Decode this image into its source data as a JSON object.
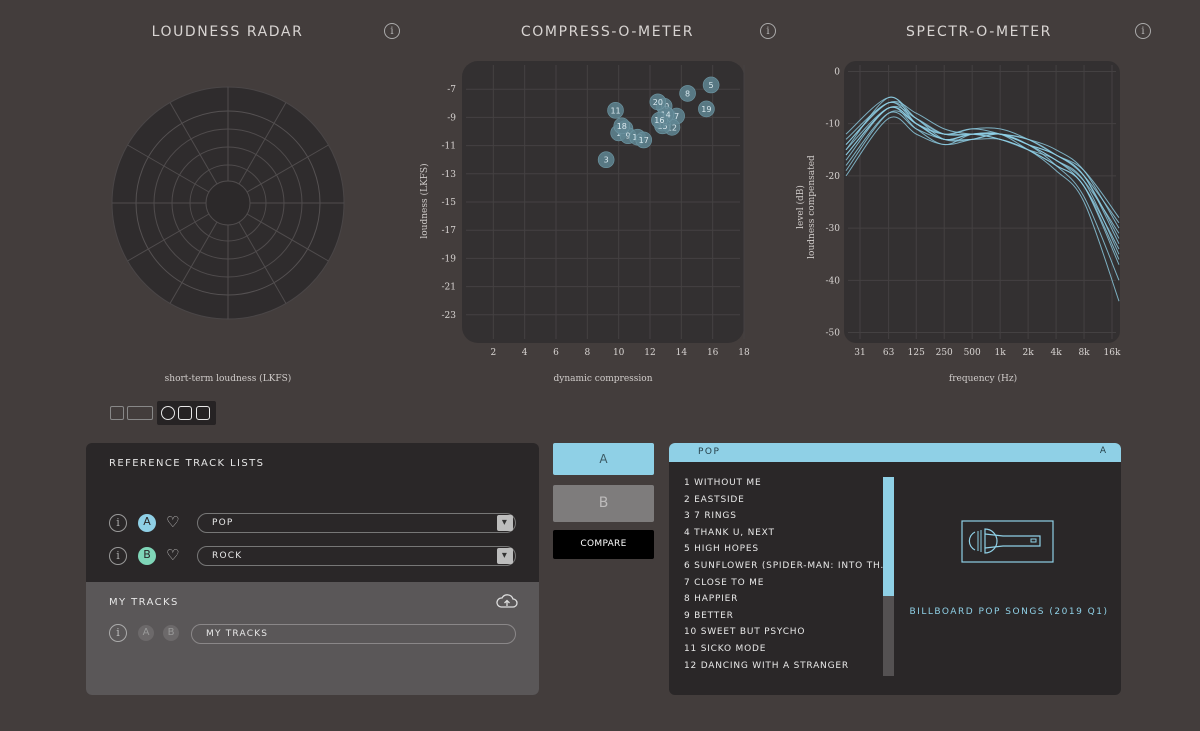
{
  "loudness_radar": {
    "title": "LOUDNESS RADAR",
    "axis_label": "short-term loudness (LKFS)"
  },
  "compress_o_meter": {
    "title": "COMPRESS-O-METER",
    "xlabel": "dynamic compression",
    "ylabel": "loudness (LKFS)"
  },
  "spectr_o_meter": {
    "title": "SPECTR-O-METER",
    "xlabel": "frequency (Hz)",
    "ylabel_line1": "level (dB)",
    "ylabel_line2": "loudness compensated"
  },
  "info_glyph": "i",
  "chart_data": [
    {
      "type": "scatter",
      "title": "COMPRESS-O-METER",
      "xlabel": "dynamic compression",
      "ylabel": "loudness (LKFS)",
      "xlim": [
        0,
        18
      ],
      "ylim": [
        -25,
        -5
      ],
      "xticks": [
        2,
        4,
        6,
        8,
        10,
        12,
        14,
        16,
        18
      ],
      "yticks": [
        -7,
        -9,
        -11,
        -13,
        -15,
        -17,
        -19,
        -21,
        -23
      ],
      "points": [
        {
          "label": "1",
          "x": 10.0,
          "y": -10.1
        },
        {
          "label": "2",
          "x": 10.4,
          "y": -9.8
        },
        {
          "label": "3",
          "x": 9.2,
          "y": -12.0
        },
        {
          "label": "4",
          "x": 13.2,
          "y": -9.0
        },
        {
          "label": "5",
          "x": 15.9,
          "y": -6.7
        },
        {
          "label": "6",
          "x": 12.8,
          "y": -9.4
        },
        {
          "label": "7",
          "x": 13.7,
          "y": -8.9
        },
        {
          "label": "8",
          "x": 14.4,
          "y": -7.3
        },
        {
          "label": "9",
          "x": 10.6,
          "y": -10.3
        },
        {
          "label": "10",
          "x": 12.9,
          "y": -8.2
        },
        {
          "label": "11",
          "x": 9.8,
          "y": -8.5
        },
        {
          "label": "12",
          "x": 13.4,
          "y": -9.7
        },
        {
          "label": "13",
          "x": 11.2,
          "y": -10.4
        },
        {
          "label": "14",
          "x": 13.0,
          "y": -8.8
        },
        {
          "label": "15",
          "x": 12.8,
          "y": -9.6
        },
        {
          "label": "16",
          "x": 12.6,
          "y": -9.2
        },
        {
          "label": "17",
          "x": 11.6,
          "y": -10.6
        },
        {
          "label": "18",
          "x": 10.2,
          "y": -9.6
        },
        {
          "label": "19",
          "x": 15.6,
          "y": -8.4
        },
        {
          "label": "20",
          "x": 12.5,
          "y": -7.9
        }
      ]
    },
    {
      "type": "line",
      "title": "SPECTR-O-METER",
      "xlabel": "frequency (Hz)",
      "ylabel": "level (dB) loudness compensated",
      "x_ticks": [
        "31",
        "63",
        "125",
        "250",
        "500",
        "1k",
        "2k",
        "4k",
        "8k",
        "16k"
      ],
      "x_hz": [
        31,
        63,
        125,
        250,
        500,
        1000,
        2000,
        4000,
        8000,
        16000
      ],
      "ylim": [
        -52,
        2
      ],
      "yticks": [
        0,
        -10,
        -20,
        -30,
        -40,
        -50
      ],
      "series_values": [
        [
          -15,
          -7,
          -10,
          -13,
          -12,
          -12,
          -14,
          -17,
          -21,
          -31
        ],
        [
          -12,
          -5,
          -9,
          -12,
          -11,
          -11,
          -13,
          -16,
          -19,
          -28
        ],
        [
          -18,
          -8,
          -11,
          -13,
          -13,
          -13,
          -15,
          -18,
          -22,
          -36
        ],
        [
          -14,
          -6,
          -8,
          -11,
          -12,
          -12,
          -13,
          -16,
          -20,
          -33
        ],
        [
          -20,
          -9,
          -12,
          -14,
          -13,
          -12,
          -14,
          -16,
          -20,
          -29
        ],
        [
          -16,
          -7,
          -10,
          -12,
          -12,
          -13,
          -15,
          -17,
          -22,
          -34
        ],
        [
          -13,
          -6,
          -9,
          -13,
          -13,
          -12,
          -14,
          -18,
          -24,
          -40
        ],
        [
          -17,
          -7,
          -11,
          -14,
          -12,
          -12,
          -13,
          -15,
          -19,
          -30
        ],
        [
          -15,
          -5,
          -10,
          -12,
          -11,
          -12,
          -14,
          -17,
          -21,
          -35
        ],
        [
          -19,
          -8,
          -10,
          -13,
          -12,
          -13,
          -15,
          -19,
          -25,
          -44
        ],
        [
          -16,
          -7,
          -9,
          -12,
          -12,
          -12,
          -14,
          -16,
          -20,
          -32
        ],
        [
          -14,
          -6,
          -10,
          -13,
          -12,
          -12,
          -15,
          -18,
          -22,
          -37
        ]
      ]
    }
  ],
  "view_toggles": [
    "small-view",
    "wide-view",
    "circle-view",
    "square-view-1",
    "square-view-2"
  ],
  "reference_panel": {
    "title": "REFERENCE TRACK LISTS",
    "rows": [
      {
        "badge": "A",
        "value": "POP",
        "badge_color": "#8fd0e6"
      },
      {
        "badge": "B",
        "value": "ROCK",
        "badge_color": "#7fd6b8"
      }
    ],
    "select_arrow": "▾",
    "heart": "♡"
  },
  "my_tracks_panel": {
    "title": "MY TRACKS",
    "badges": [
      "A",
      "B"
    ],
    "value": "MY TRACKS"
  },
  "ab_buttons": {
    "a_label": "A",
    "b_label": "B",
    "compare_label": "COMPARE"
  },
  "tracklist_panel": {
    "header": "POP",
    "header_badge": "A",
    "playlist_name": "BILLBOARD POP SONGS (2019 Q1)",
    "scroll_fraction": 0.6,
    "tracks": [
      "1  WITHOUT ME",
      "2  EASTSIDE",
      "3  7 RINGS",
      "4  THANK U, NEXT",
      "5  HIGH HOPES",
      "6  SUNFLOWER (SPIDER-MAN: INTO TH...",
      "7  CLOSE TO ME",
      "8  HAPPIER",
      "9  BETTER",
      "10  SWEET BUT PSYCHO",
      "11  SICKO MODE",
      "12  DANCING WITH A STRANGER"
    ]
  },
  "colors": {
    "background": "#433d3c",
    "chart_bg": "#333031",
    "accent_blue": "#8fd0e6",
    "accent_green": "#7fd6b8",
    "point_fill": "#5f8592"
  }
}
